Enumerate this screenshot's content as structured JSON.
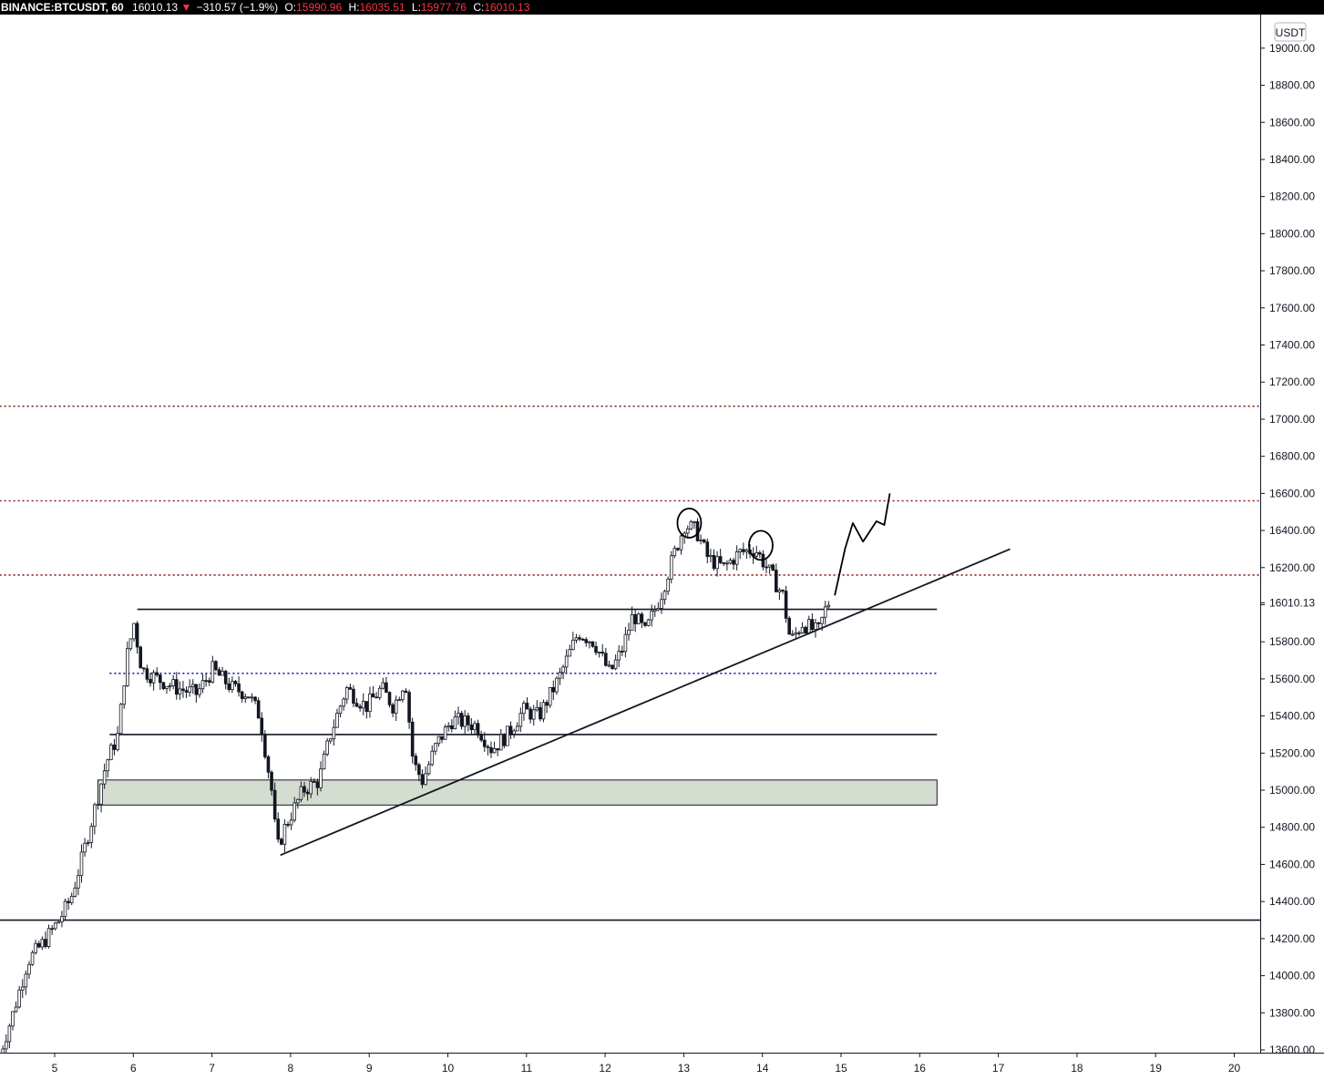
{
  "header": {
    "symbol": "BINANCE:BTCUSDT, 60",
    "last": "16010.13",
    "change_arrow": "▼",
    "change": "−310.57 (−1.9%)",
    "o_label": "O:",
    "o_value": "15990.96",
    "h_label": "H:",
    "h_value": "16035.51",
    "l_label": "L:",
    "l_value": "15977.76",
    "c_label": "C:",
    "c_value": "16010.13"
  },
  "chart_data": {
    "type": "candlestick",
    "currency_label": "USDT",
    "last_price": 16010.13,
    "last_price_label": "16010.13",
    "y_ticks": [
      13600,
      13800,
      14000,
      14200,
      14400,
      14600,
      14800,
      15000,
      15200,
      15400,
      15600,
      15800,
      16000,
      16200,
      16400,
      16600,
      16800,
      17000,
      17200,
      17400,
      17600,
      17800,
      18000,
      18200,
      18400,
      18600,
      18800,
      19000
    ],
    "y_tick_labels": [
      "13600.00",
      "13800.00",
      "14000.00",
      "14200.00",
      "14400.00",
      "14600.00",
      "14800.00",
      "15000.00",
      "15200.00",
      "15400.00",
      "15600.00",
      "15800.00",
      "",
      "16200.00",
      "16400.00",
      "16600.00",
      "16800.00",
      "17000.00",
      "17200.00",
      "17400.00",
      "17600.00",
      "17800.00",
      "18000.00",
      "18200.00",
      "18400.00",
      "18600.00",
      "18800.00",
      "19000.00"
    ],
    "ylim": [
      13480,
      19080
    ],
    "xlim": [
      4.3,
      20.35
    ],
    "x_ticks": [
      5,
      6,
      7,
      8,
      9,
      10,
      11,
      12,
      13,
      14,
      15,
      16,
      17,
      18,
      19,
      20
    ],
    "x_tick_labels": [
      "5",
      "6",
      "7",
      "8",
      "9",
      "10",
      "11",
      "12",
      "13",
      "14",
      "15",
      "16",
      "17",
      "18",
      "19",
      "20"
    ],
    "price_path": [
      [
        4.3,
        13520
      ],
      [
        4.5,
        13780
      ],
      [
        4.7,
        14080
      ],
      [
        4.9,
        14180
      ],
      [
        5.1,
        14300
      ],
      [
        5.25,
        14420
      ],
      [
        5.4,
        14650
      ],
      [
        5.55,
        14900
      ],
      [
        5.7,
        15150
      ],
      [
        5.85,
        15300
      ],
      [
        5.95,
        15700
      ],
      [
        6.05,
        15900
      ],
      [
        6.15,
        15650
      ],
      [
        6.35,
        15600
      ],
      [
        6.6,
        15550
      ],
      [
        6.85,
        15520
      ],
      [
        7.05,
        15650
      ],
      [
        7.3,
        15550
      ],
      [
        7.5,
        15520
      ],
      [
        7.65,
        15400
      ],
      [
        7.8,
        15000
      ],
      [
        7.87,
        14680
      ],
      [
        7.97,
        14800
      ],
      [
        8.2,
        15000
      ],
      [
        8.4,
        15050
      ],
      [
        8.55,
        15300
      ],
      [
        8.75,
        15550
      ],
      [
        9.0,
        15450
      ],
      [
        9.2,
        15550
      ],
      [
        9.35,
        15450
      ],
      [
        9.5,
        15600
      ],
      [
        9.6,
        15150
      ],
      [
        9.72,
        15050
      ],
      [
        9.9,
        15250
      ],
      [
        10.1,
        15380
      ],
      [
        10.4,
        15350
      ],
      [
        10.6,
        15220
      ],
      [
        10.8,
        15300
      ],
      [
        11.0,
        15430
      ],
      [
        11.2,
        15400
      ],
      [
        11.45,
        15600
      ],
      [
        11.7,
        15850
      ],
      [
        11.9,
        15800
      ],
      [
        12.1,
        15630
      ],
      [
        12.25,
        15750
      ],
      [
        12.4,
        15950
      ],
      [
        12.55,
        15850
      ],
      [
        12.75,
        16050
      ],
      [
        12.9,
        16250
      ],
      [
        13.05,
        16430
      ],
      [
        13.2,
        16400
      ],
      [
        13.35,
        16250
      ],
      [
        13.55,
        16200
      ],
      [
        13.75,
        16280
      ],
      [
        13.95,
        16300
      ],
      [
        14.1,
        16200
      ],
      [
        14.3,
        16050
      ],
      [
        14.4,
        15800
      ],
      [
        14.55,
        15900
      ],
      [
        14.75,
        15850
      ],
      [
        14.87,
        16010
      ]
    ],
    "horizontal_lines": [
      {
        "style": "solid",
        "price": 15975,
        "x_start": 6.05,
        "x_end": 16.22
      },
      {
        "style": "solid",
        "price": 15300,
        "x_start": 5.7,
        "x_end": 16.22
      },
      {
        "style": "solid",
        "price": 14300,
        "x_start": 4.3,
        "x_end": 20.35
      },
      {
        "style": "dotted",
        "color": "#1a1aa8",
        "price": 15630,
        "x_start": 5.7,
        "x_end": 16.22
      },
      {
        "style": "dotted",
        "color": "#8b1a1a",
        "price": 17070,
        "x_start": 4.3,
        "x_end": 20.35
      },
      {
        "style": "dotted",
        "color": "#8b1a1a",
        "price": 16560,
        "x_start": 4.3,
        "x_end": 20.35
      },
      {
        "style": "dotted",
        "color": "#8b1a1a",
        "price": 16160,
        "x_start": 4.3,
        "x_end": 20.35
      }
    ],
    "zone": {
      "price_top": 15055,
      "price_bottom": 14920,
      "x_start": 5.55,
      "x_end": 16.22,
      "color": "#d5ddd1"
    },
    "trendline": {
      "x1": 7.87,
      "y1": 14650,
      "x2": 17.15,
      "y2": 16300
    },
    "annotations": [
      {
        "type": "circle",
        "x": 13.07,
        "price": 16440
      },
      {
        "type": "circle",
        "x": 13.98,
        "price": 16320
      }
    ],
    "projection_path": [
      [
        14.92,
        16050
      ],
      [
        15.05,
        16300
      ],
      [
        15.15,
        16440
      ],
      [
        15.28,
        16340
      ],
      [
        15.45,
        16450
      ],
      [
        15.55,
        16430
      ],
      [
        15.62,
        16600
      ]
    ]
  }
}
